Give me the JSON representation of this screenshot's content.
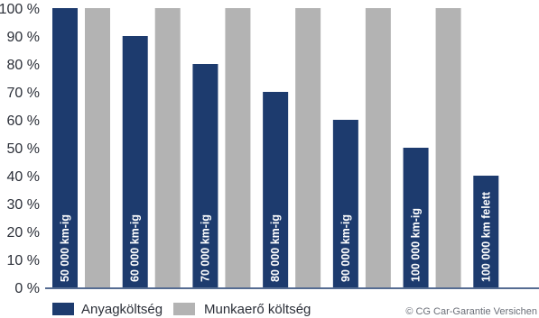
{
  "chart_data": {
    "type": "bar",
    "categories": [
      "50 000 km-ig",
      "60 000 km-ig",
      "70 000 km-ig",
      "80 000 km-ig",
      "90 000 km-ig",
      "100 000 km-ig",
      "100 000 km felett"
    ],
    "series": [
      {
        "name": "Anyagköltség",
        "color": "#1d3b6e",
        "values": [
          100,
          90,
          80,
          70,
          60,
          50,
          40
        ]
      },
      {
        "name": "Munkaerő költség",
        "color": "#b3b3b3",
        "values": [
          100,
          100,
          100,
          100,
          100,
          100,
          0
        ]
      }
    ],
    "ylim": [
      0,
      100
    ],
    "yticks": [
      "0 %",
      "10 %",
      "20 %",
      "30 %",
      "40 %",
      "50 %",
      "60 %",
      "70 %",
      "80 %",
      "90 %",
      "100 %"
    ],
    "ytick_values": [
      0,
      10,
      20,
      30,
      40,
      50,
      60,
      70,
      80,
      90,
      100
    ],
    "grid": false,
    "legend_position": "bottom-left",
    "axis_color": "#1d3b6e"
  },
  "credit": "© CG Car-Garantie Versichen"
}
